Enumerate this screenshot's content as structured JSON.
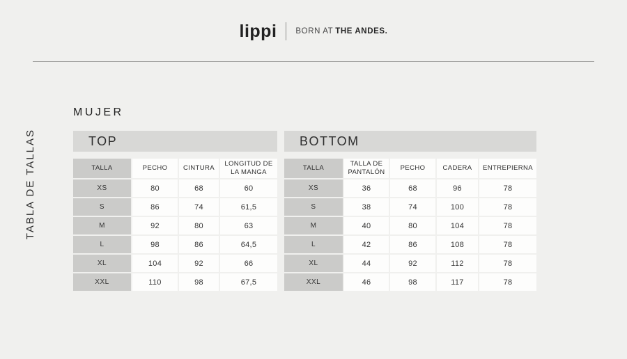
{
  "brand": {
    "logo_text": "lippi",
    "tagline_regular": "BORN AT",
    "tagline_bold": "THE ANDES."
  },
  "page_label": "TABLA DE TALLAS",
  "section_title": "MUJER",
  "tables": [
    {
      "title": "TOP",
      "columns": [
        "TALLA",
        "PECHO",
        "CINTURA",
        "LONGITUD DE LA MANGA"
      ],
      "rows": [
        [
          "XS",
          "80",
          "68",
          "60"
        ],
        [
          "S",
          "86",
          "74",
          "61,5"
        ],
        [
          "M",
          "92",
          "80",
          "63"
        ],
        [
          "L",
          "98",
          "86",
          "64,5"
        ],
        [
          "XL",
          "104",
          "92",
          "66"
        ],
        [
          "XXL",
          "110",
          "98",
          "67,5"
        ]
      ]
    },
    {
      "title": "BOTTOM",
      "columns": [
        "TALLA",
        "TALLA DE PANTALÓN",
        "PECHO",
        "CADERA",
        "ENTREPIERNA"
      ],
      "rows": [
        [
          "XS",
          "36",
          "68",
          "96",
          "78"
        ],
        [
          "S",
          "38",
          "74",
          "100",
          "78"
        ],
        [
          "M",
          "40",
          "80",
          "104",
          "78"
        ],
        [
          "L",
          "42",
          "86",
          "108",
          "78"
        ],
        [
          "XL",
          "44",
          "92",
          "112",
          "78"
        ],
        [
          "XXL",
          "46",
          "98",
          "117",
          "78"
        ]
      ]
    }
  ],
  "colors": {
    "page_background": "#f0f0ee",
    "section_bar": "#d8d8d6",
    "label_cell": "#cbcbc9",
    "data_cell": "#fdfdfc",
    "text": "#2e2e2e"
  }
}
